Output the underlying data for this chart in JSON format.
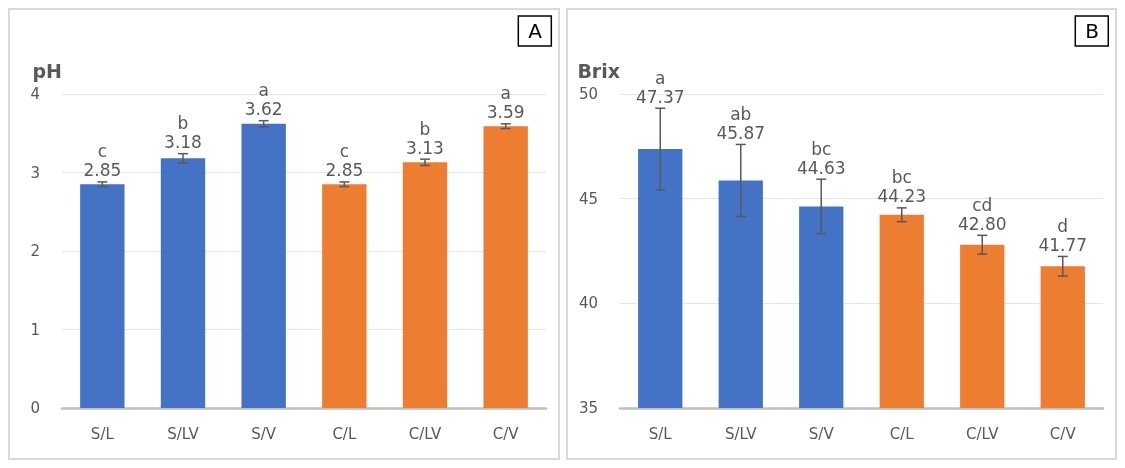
{
  "chart_data": [
    {
      "type": "bar",
      "title": "A",
      "ylabel": "pH",
      "categories": [
        "S/L",
        "S/LV",
        "S/V",
        "C/L",
        "C/LV",
        "C/V"
      ],
      "values": [
        2.85,
        3.18,
        3.62,
        2.85,
        3.13,
        3.59
      ],
      "colors": [
        "#4472c4",
        "#4472c4",
        "#4472c4",
        "#ed7d31",
        "#ed7d31",
        "#ed7d31"
      ],
      "errors": [
        0.03,
        0.06,
        0.04,
        0.03,
        0.04,
        0.03
      ],
      "value_labels": [
        "2.85",
        "3.18",
        "3.62",
        "2.85",
        "3.13",
        "3.59"
      ],
      "annotations": [
        "c",
        "b",
        "a",
        "c",
        "b",
        "a"
      ],
      "ylim": [
        0,
        4
      ],
      "yticks": [
        0,
        1,
        2,
        3,
        4
      ],
      "grid": "y"
    },
    {
      "type": "bar",
      "title": "B",
      "ylabel": "Brix",
      "categories": [
        "S/L",
        "S/LV",
        "S/V",
        "C/L",
        "C/LV",
        "C/V"
      ],
      "values": [
        47.37,
        45.87,
        44.63,
        44.23,
        42.8,
        41.77
      ],
      "colors": [
        "#4472c4",
        "#4472c4",
        "#4472c4",
        "#ed7d31",
        "#ed7d31",
        "#ed7d31"
      ],
      "errors": [
        1.95,
        1.72,
        1.3,
        0.33,
        0.45,
        0.47
      ],
      "value_labels": [
        "47.37",
        "45.87",
        "44.63",
        "44.23",
        "42.80",
        "41.77"
      ],
      "annotations": [
        "a",
        "ab",
        "bc",
        "bc",
        "cd",
        "d"
      ],
      "ylim": [
        35,
        50
      ],
      "yticks": [
        35,
        40,
        45,
        50
      ],
      "grid": "y"
    }
  ]
}
